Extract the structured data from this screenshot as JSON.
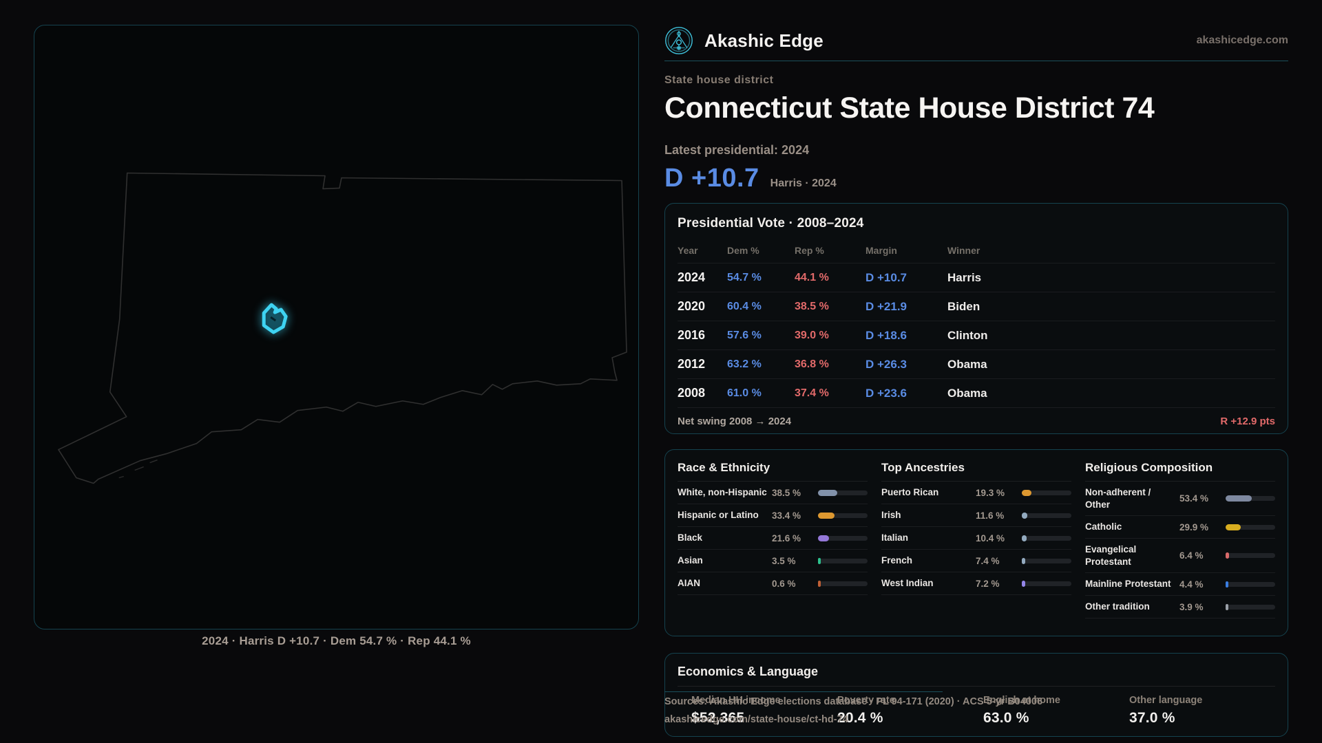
{
  "brand": {
    "name": "Akashic Edge",
    "domain": "akashicedge.com",
    "logo_icon": "akashic-emblem-icon"
  },
  "header": {
    "kicker": "State house district",
    "title": "Connecticut State House District 74",
    "latest_label": "Latest presidential: 2024",
    "margin_value": "D +10.7",
    "margin_note": "Harris · 2024"
  },
  "map": {
    "caption": "2024 · Harris D +10.7 · Dem 54.7 % · Rep 44.1 %",
    "highlight_color": "#3ed3f2"
  },
  "vote_table": {
    "title": "Presidential Vote · 2008–2024",
    "columns": [
      "Year",
      "Dem %",
      "Rep %",
      "Margin",
      "Winner"
    ],
    "rows": [
      {
        "year": "2024",
        "dem": "54.7 %",
        "rep": "44.1 %",
        "margin": "D +10.7",
        "winner": "Harris"
      },
      {
        "year": "2020",
        "dem": "60.4 %",
        "rep": "38.5 %",
        "margin": "D +21.9",
        "winner": "Biden"
      },
      {
        "year": "2016",
        "dem": "57.6 %",
        "rep": "39.0 %",
        "margin": "D +18.6",
        "winner": "Clinton"
      },
      {
        "year": "2012",
        "dem": "63.2 %",
        "rep": "36.8 %",
        "margin": "D +26.3",
        "winner": "Obama"
      },
      {
        "year": "2008",
        "dem": "61.0 %",
        "rep": "37.4 %",
        "margin": "D +23.6",
        "winner": "Obama"
      }
    ],
    "net_swing_label": "Net swing 2008 → 2024",
    "net_swing_value": "R +12.9 pts"
  },
  "demographics": {
    "race": {
      "title": "Race & Ethnicity",
      "rows": [
        {
          "label": "White, non-Hispanic",
          "value": "38.5 %",
          "pct": 38.5,
          "color": "#8292aa"
        },
        {
          "label": "Hispanic or Latino",
          "value": "33.4 %",
          "pct": 33.4,
          "color": "#dd9830"
        },
        {
          "label": "Black",
          "value": "21.6 %",
          "pct": 21.6,
          "color": "#9478d8"
        },
        {
          "label": "Asian",
          "value": "3.5 %",
          "pct": 3.5,
          "color": "#2dc08d"
        },
        {
          "label": "AIAN",
          "value": "0.6 %",
          "pct": 0.6,
          "color": "#bf5f35"
        }
      ]
    },
    "ancestries": {
      "title": "Top Ancestries",
      "rows": [
        {
          "label": "Puerto Rican",
          "value": "19.3 %",
          "pct": 19.3,
          "color": "#dd9830"
        },
        {
          "label": "Irish",
          "value": "11.6 %",
          "pct": 11.6,
          "color": "#93aabf"
        },
        {
          "label": "Italian",
          "value": "10.4 %",
          "pct": 10.4,
          "color": "#93aabf"
        },
        {
          "label": "French",
          "value": "7.4 %",
          "pct": 7.4,
          "color": "#93aabf"
        },
        {
          "label": "West Indian",
          "value": "7.2 %",
          "pct": 7.2,
          "color": "#9486e8"
        }
      ]
    },
    "religion": {
      "title": "Religious Composition",
      "rows": [
        {
          "label": "Non-adherent / Other",
          "value": "53.4 %",
          "pct": 53.4,
          "color": "#7e89a0"
        },
        {
          "label": "Catholic",
          "value": "29.9 %",
          "pct": 29.9,
          "color": "#d8ad1f"
        },
        {
          "label": "Evangelical Protestant",
          "value": "6.4 %",
          "pct": 6.4,
          "color": "#d96a6a"
        },
        {
          "label": "Mainline Protestant",
          "value": "4.4 %",
          "pct": 4.4,
          "color": "#3a7de0"
        },
        {
          "label": "Other tradition",
          "value": "3.9 %",
          "pct": 3.9,
          "color": "#9aa0a8"
        }
      ]
    }
  },
  "economics": {
    "title": "Economics & Language",
    "stats": [
      {
        "label": "Median HH income",
        "value": "$52,365"
      },
      {
        "label": "Poverty rate",
        "value": "20.4 %"
      },
      {
        "label": "English at home",
        "value": "63.0 %"
      },
      {
        "label": "Other language",
        "value": "37.0 %"
      }
    ]
  },
  "footer": {
    "sources_line": "Sources: Akashic Edge elections database · PL 94-171 (2020) · ACS 5-yr B04006",
    "permalink": "akashicedge.com/state-house/ct-hd-74"
  }
}
